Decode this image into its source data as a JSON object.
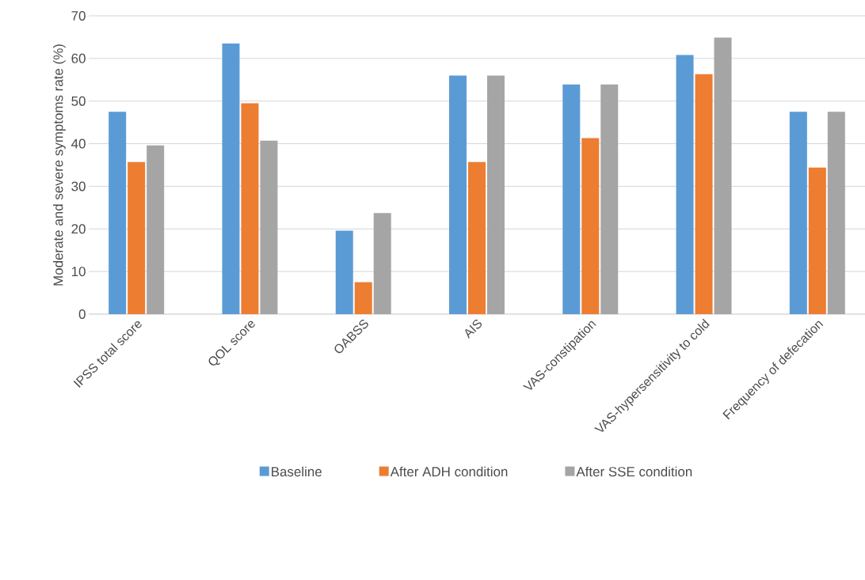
{
  "chart_data": {
    "type": "bar",
    "ylabel": "Moderate and severe symptoms rate (%)",
    "categories": [
      "IPSS total score",
      "QOL score",
      "OABSS",
      "AIS",
      "VAS-constipation",
      "VAS-hypersensitivity to cold",
      "Frequency of defecation"
    ],
    "series": [
      {
        "name": "Baseline",
        "color": "#5b9bd5",
        "values": [
          47.5,
          63.5,
          19.6,
          56.0,
          53.9,
          60.8,
          47.5
        ]
      },
      {
        "name": "After ADH condition",
        "color": "#ed7d31",
        "values": [
          35.7,
          49.5,
          7.5,
          35.7,
          41.3,
          56.3,
          34.4
        ]
      },
      {
        "name": "After SSE condition",
        "color": "#a5a5a5",
        "values": [
          39.6,
          40.7,
          23.7,
          56.0,
          53.9,
          64.9,
          47.5
        ]
      }
    ],
    "ylim": [
      0,
      70
    ],
    "yticks": [
      0,
      10,
      20,
      30,
      40,
      50,
      60,
      70
    ],
    "grid": "y",
    "legend": "bottom"
  }
}
